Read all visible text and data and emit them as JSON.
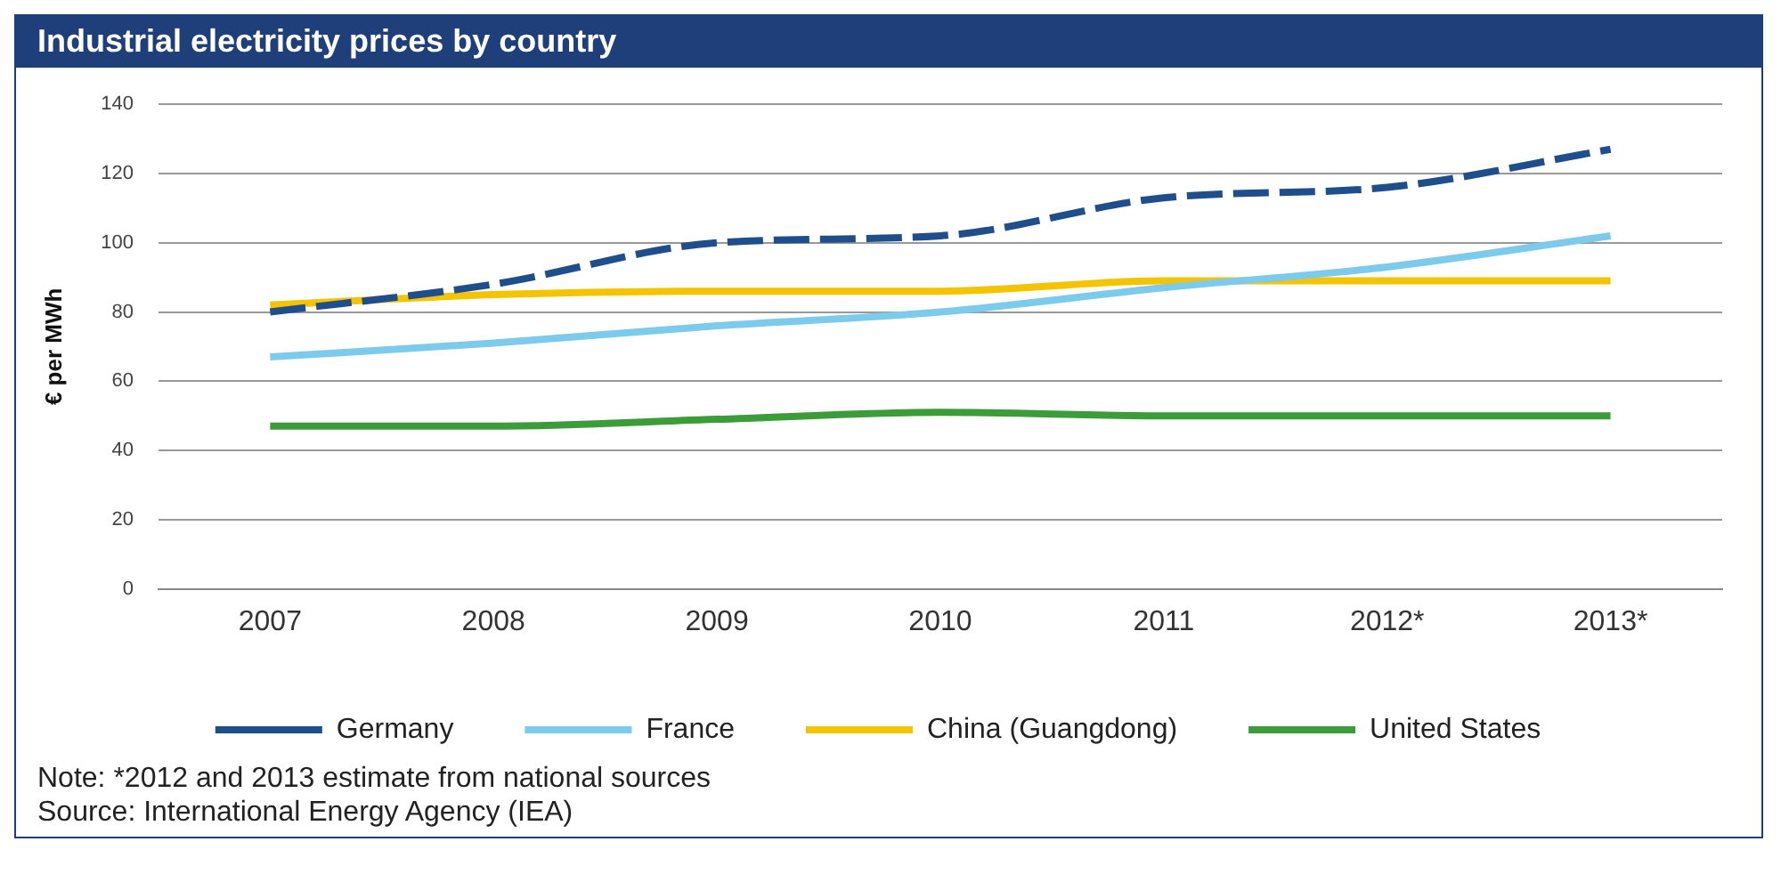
{
  "chart_data": {
    "type": "line",
    "title": "Industrial electricity prices by country",
    "ylabel": "€ per MWh",
    "categories": [
      "2007",
      "2008",
      "2009",
      "2010",
      "2011",
      "2012*",
      "2013*"
    ],
    "series": [
      {
        "name": "Germany",
        "color": "#1f4e8c",
        "line_style": "dashed",
        "values": [
          80,
          88,
          100,
          102,
          113,
          116,
          127
        ]
      },
      {
        "name": "France",
        "color": "#7ccbed",
        "values": [
          67,
          71,
          76,
          80,
          87,
          93,
          102
        ]
      },
      {
        "name": "China (Guangdong)",
        "color": "#f5c400",
        "values": [
          82,
          85,
          86,
          86,
          89,
          89,
          89
        ]
      },
      {
        "name": "United States",
        "color": "#3d9c3a",
        "values": [
          47,
          47,
          49,
          51,
          50,
          50,
          50
        ]
      }
    ],
    "ylim": [
      0,
      140
    ],
    "yticks": [
      0,
      20,
      40,
      60,
      80,
      100,
      120,
      140
    ],
    "grid": "y",
    "legend": "bottom",
    "marker": "none",
    "line_style": "solid",
    "annotations": [
      "Note: *2012 and 2013 estimate from national sources",
      "Source: International Energy Agency (IEA)"
    ]
  }
}
